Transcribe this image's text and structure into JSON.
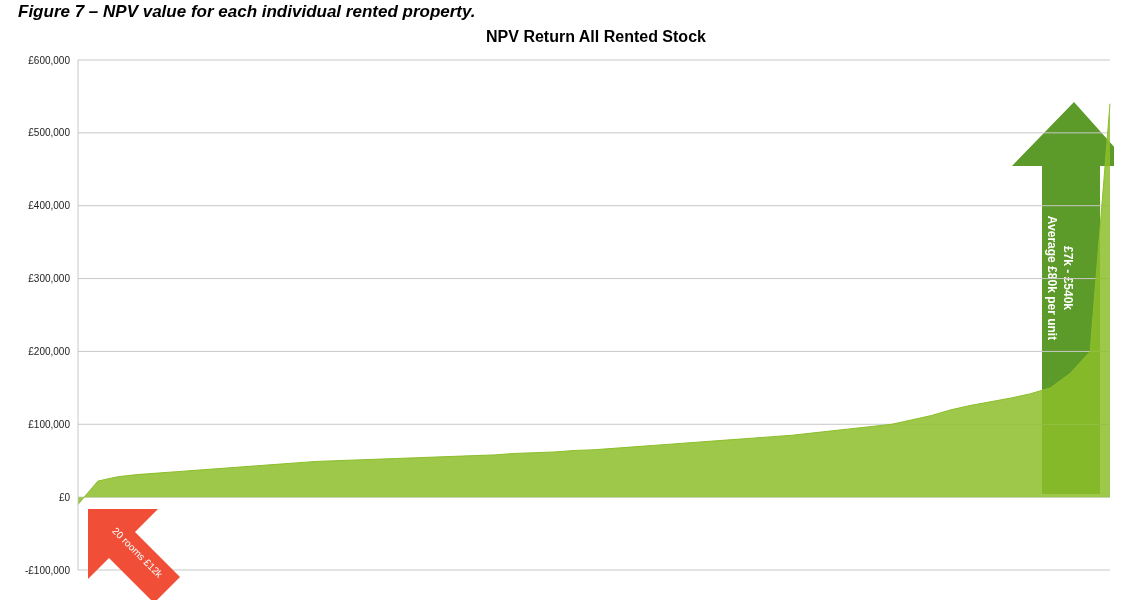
{
  "chart_data": {
    "type": "area",
    "title": "NPV Return All Rented Stock",
    "categories": [
      null,
      null,
      null,
      null,
      null,
      null,
      null,
      null,
      null,
      null,
      null,
      null,
      null,
      null,
      null,
      null,
      null,
      null,
      null,
      null,
      null,
      null,
      null,
      null,
      null,
      null,
      null,
      null,
      null,
      null,
      null,
      null,
      null,
      null,
      null,
      null,
      null,
      null,
      null,
      null,
      null,
      null,
      null,
      null,
      null,
      null,
      null,
      null,
      null,
      null,
      null,
      null,
      null
    ],
    "series": [
      {
        "color": "#8cbe2a",
        "values": [
          -10000,
          22000,
          28000,
          31000,
          33000,
          35000,
          37000,
          39000,
          41000,
          43000,
          45000,
          47000,
          49000,
          50000,
          51000,
          52000,
          53000,
          54000,
          55000,
          56000,
          57000,
          58000,
          60000,
          61000,
          62000,
          64000,
          65000,
          67000,
          69000,
          71000,
          73000,
          75000,
          77000,
          79000,
          81000,
          83000,
          85000,
          88000,
          91000,
          94000,
          97000,
          100000,
          106000,
          112000,
          120000,
          126000,
          131000,
          136000,
          142000,
          150000,
          170000,
          200000,
          540000
        ]
      }
    ],
    "ylim": [
      -100000,
      600000
    ],
    "yticks": [
      {
        "value": -100000,
        "label": "-£100,000"
      },
      {
        "value": 0,
        "label": "£0"
      },
      {
        "value": 100000,
        "label": "£100,000"
      },
      {
        "value": 200000,
        "label": "£200,000"
      },
      {
        "value": 300000,
        "label": "£300,000"
      },
      {
        "value": 400000,
        "label": "£400,000"
      },
      {
        "value": 500000,
        "label": "£500,000"
      },
      {
        "value": 600000,
        "label": "£600,000"
      }
    ],
    "grid": "y",
    "tick_labels": "y",
    "legend": false,
    "annotations": [
      "Figure 7 – NPV value for each individual rented property.",
      "20 rooms £12k",
      "£7k - £540k",
      "Average £80k per unit"
    ]
  }
}
